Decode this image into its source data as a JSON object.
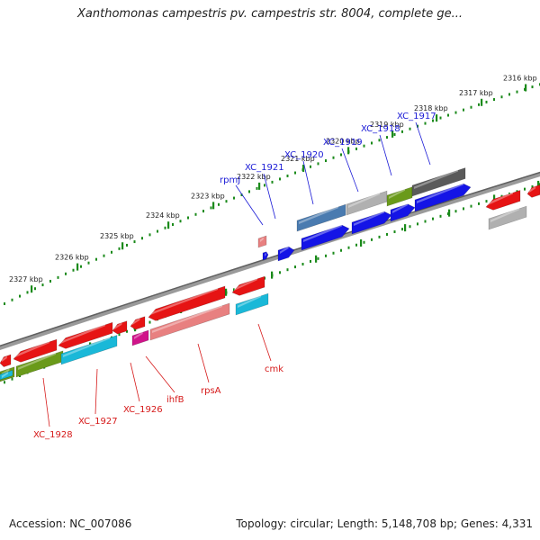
{
  "title": "Xanthomonas campestris pv. campestris str. 8004, complete ge...",
  "footer": {
    "accession": "Accession: NC_007086",
    "topology": "Topology: circular; Length: 5,148,708 bp; Genes: 4,331"
  },
  "scale": {
    "unit": "kbp",
    "ticks": [
      {
        "pos": 2316,
        "label": "2316 kbp"
      },
      {
        "pos": 2317,
        "label": "2317 kbp"
      },
      {
        "pos": 2318,
        "label": "2318 kbp"
      },
      {
        "pos": 2319,
        "label": "2319 kbp"
      },
      {
        "pos": 2320,
        "label": "2320 kbp"
      },
      {
        "pos": 2321,
        "label": "2321 kbp"
      },
      {
        "pos": 2322,
        "label": "2322 kbp"
      },
      {
        "pos": 2323,
        "label": "2323 kbp"
      },
      {
        "pos": 2324,
        "label": "2324 kbp"
      },
      {
        "pos": 2325,
        "label": "2325 kbp"
      },
      {
        "pos": 2326,
        "label": "2326 kbp"
      },
      {
        "pos": 2327,
        "label": "2327 kbp"
      }
    ]
  },
  "genes": {
    "forward_labels": [
      "rpmJ",
      "XC_1921",
      "XC_1920",
      "XC_1919",
      "XC_1918",
      "XC_1917"
    ],
    "reverse_labels": [
      "XC_1928",
      "XC_1927",
      "XC_1926",
      "ihfB",
      "rpsA",
      "cmk"
    ]
  },
  "colors": {
    "forward_label": "#1a1ad6",
    "reverse_label": "#d61a1a",
    "forward_gene": "#1414e6",
    "reverse_gene": "#e61414",
    "tick": "#1a8a1a",
    "backbone": "#7a7a7a",
    "cds_grey": "#b0b0b0",
    "cds_darkgrey": "#5a5a5a",
    "cds_steel": "#4a7bb0",
    "cds_olive": "#6a9a1a",
    "cds_cyan": "#1ab8d8",
    "cds_pink": "#e88080",
    "cds_magenta": "#d0148a"
  }
}
